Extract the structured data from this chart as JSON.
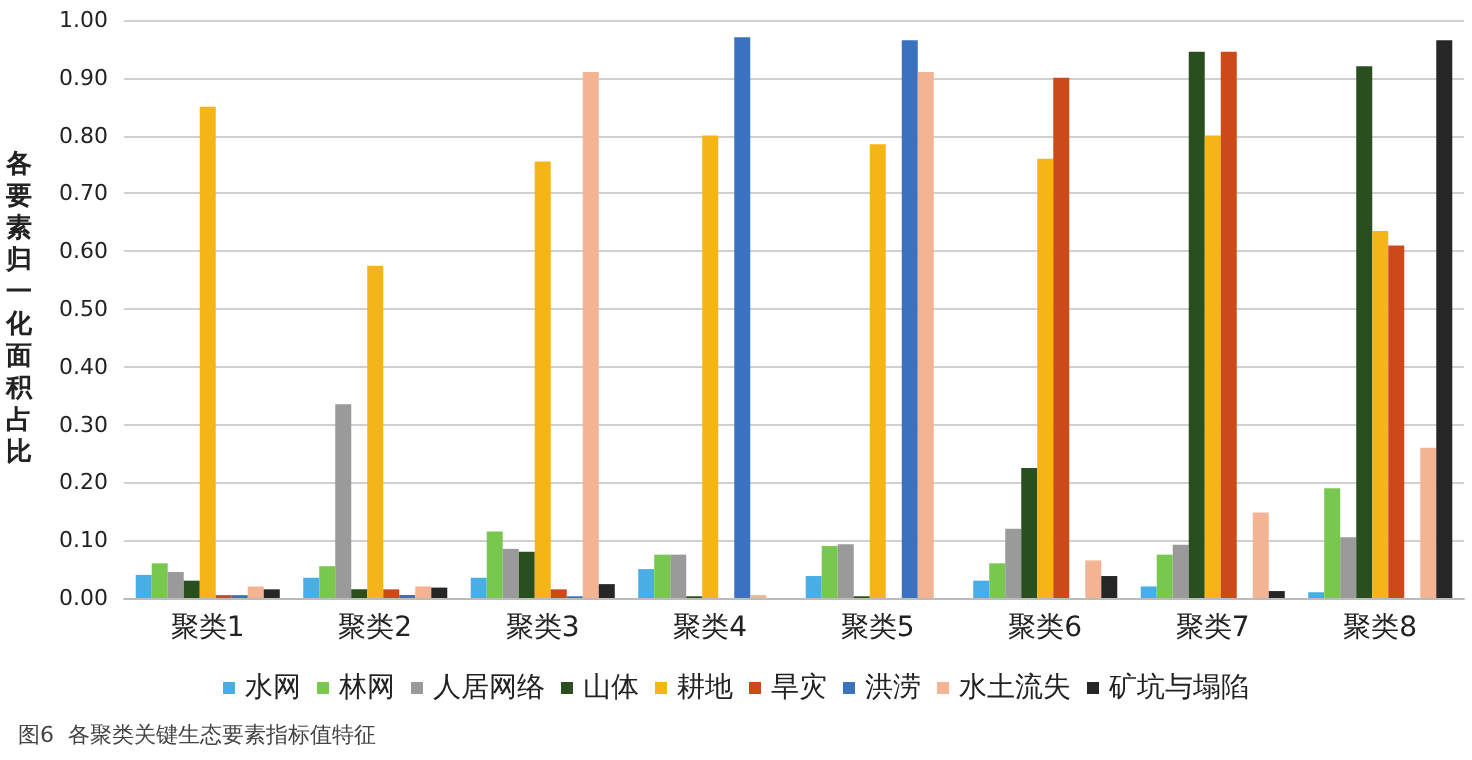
{
  "chart_data": {
    "type": "bar",
    "ylabel": "各要素归一化面积占比",
    "annotations": [
      "图6  各聚类关键生态要素指标值特征"
    ],
    "categories": [
      "聚类1",
      "聚类2",
      "聚类3",
      "聚类4",
      "聚类5",
      "聚类6",
      "聚类7",
      "聚类8"
    ],
    "series": [
      {
        "name": "水网",
        "color": "#4aaee6",
        "values": [
          0.04,
          0.035,
          0.035,
          0.05,
          0.038,
          0.03,
          0.02,
          0.01
        ]
      },
      {
        "name": "林网",
        "color": "#78c850",
        "values": [
          0.06,
          0.055,
          0.115,
          0.075,
          0.09,
          0.06,
          0.075,
          0.19
        ]
      },
      {
        "name": "人居网络",
        "color": "#9a9a9a",
        "values": [
          0.045,
          0.335,
          0.085,
          0.075,
          0.093,
          0.12,
          0.092,
          0.105
        ]
      },
      {
        "name": "山体",
        "color": "#2a4f1e",
        "values": [
          0.03,
          0.015,
          0.08,
          0.003,
          0.003,
          0.225,
          0.945,
          0.92
        ]
      },
      {
        "name": "耕地",
        "color": "#f5b417",
        "values": [
          0.85,
          0.575,
          0.755,
          0.8,
          0.785,
          0.76,
          0.8,
          0.635
        ]
      },
      {
        "name": "旱灾",
        "color": "#cc4a1a",
        "values": [
          0.005,
          0.015,
          0.015,
          0,
          0,
          0.9,
          0.945,
          0.61
        ]
      },
      {
        "name": "洪涝",
        "color": "#3b72c0",
        "values": [
          0.005,
          0.005,
          0.003,
          0.97,
          0.965,
          0,
          0,
          0
        ]
      },
      {
        "name": "水土流失",
        "color": "#f4b393",
        "values": [
          0.02,
          0.02,
          0.91,
          0.005,
          0.91,
          0.065,
          0.148,
          0.26
        ]
      },
      {
        "name": "矿坑与塌陷",
        "color": "#262626",
        "values": [
          0.015,
          0.018,
          0.024,
          0,
          0,
          0.038,
          0.012,
          0.965
        ]
      }
    ],
    "ylim": [
      0,
      1
    ],
    "yticks": [
      {
        "value": 0,
        "label": "0.00"
      },
      {
        "value": 0.1,
        "label": "0.10"
      },
      {
        "value": 0.2,
        "label": "0.20"
      },
      {
        "value": 0.3,
        "label": "0.30"
      },
      {
        "value": 0.4,
        "label": "0.40"
      },
      {
        "value": 0.5,
        "label": "0.50"
      },
      {
        "value": 0.6,
        "label": "0.60"
      },
      {
        "value": 0.7,
        "label": "0.70"
      },
      {
        "value": 0.8,
        "label": "0.80"
      },
      {
        "value": 0.9,
        "label": "0.90"
      },
      {
        "value": 1,
        "label": "1.00"
      }
    ],
    "grid": "y",
    "legend": "bottom"
  }
}
